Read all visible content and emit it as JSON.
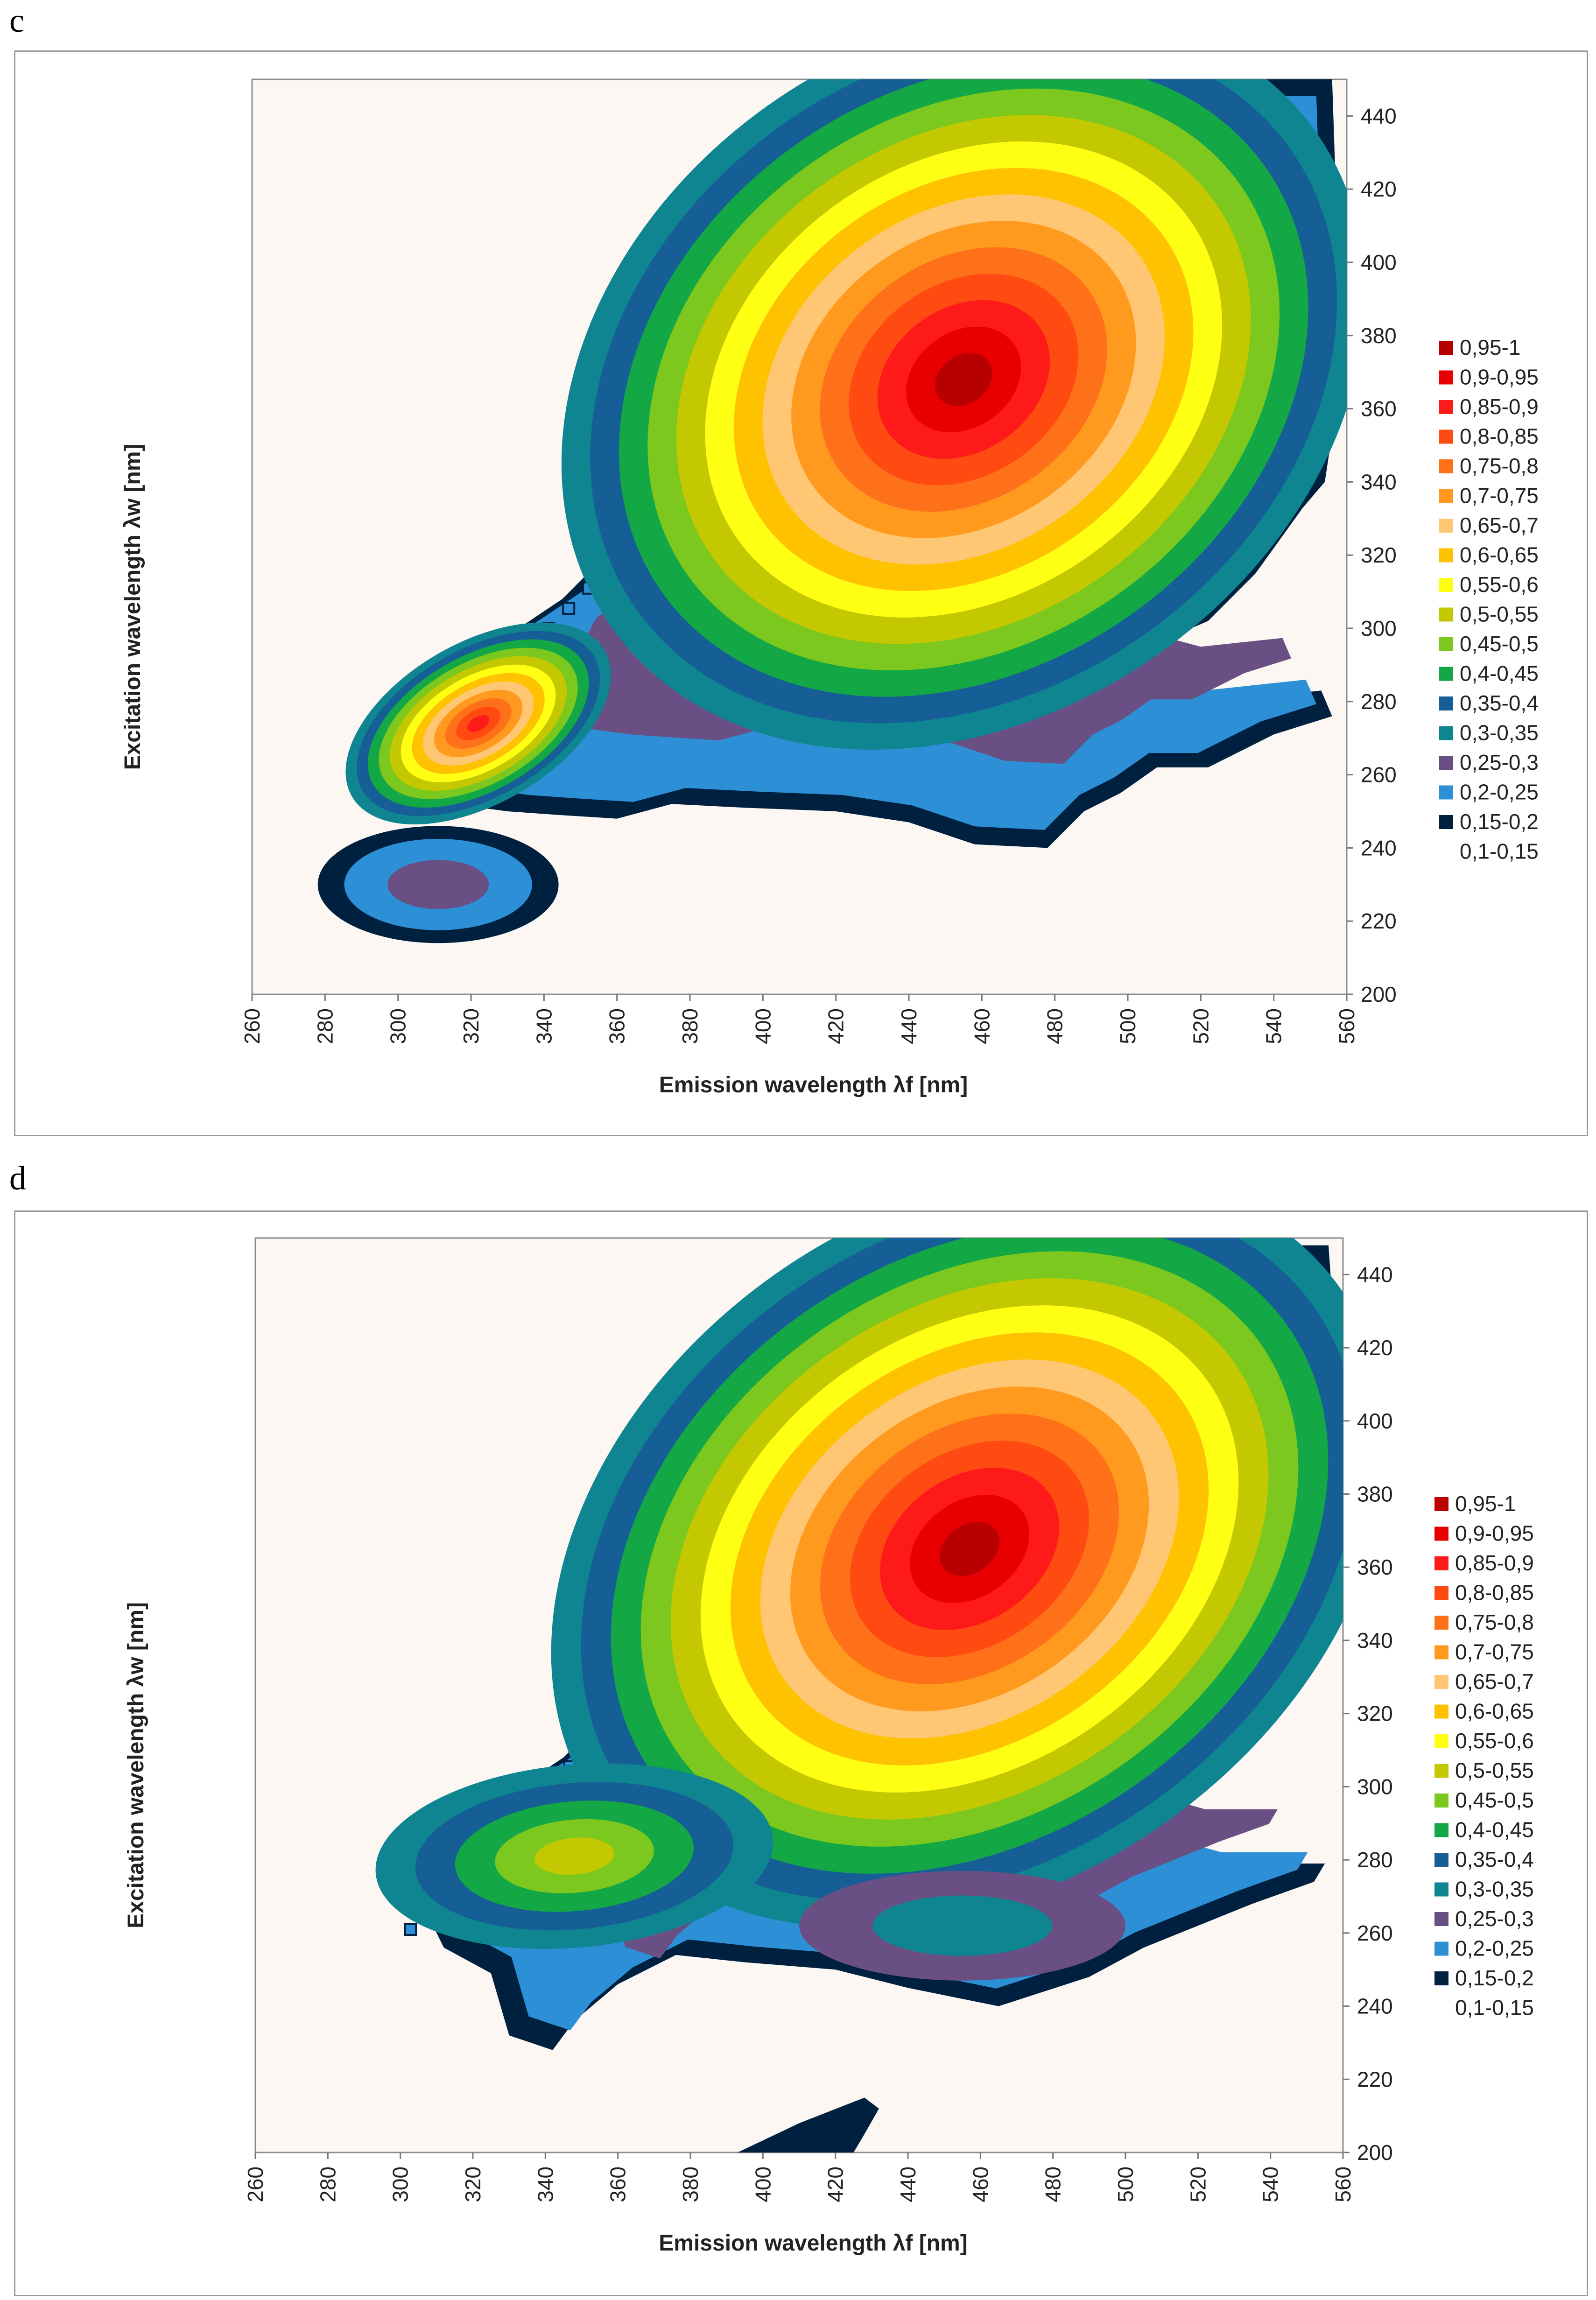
{
  "panels": [
    {
      "label": "c",
      "chart_data": {
        "type": "heatmap",
        "subtype": "contour",
        "xlabel": "Emission wavelength λf [nm]",
        "ylabel": "Excitation wavelength λw [nm]",
        "xlim": [
          260,
          560
        ],
        "ylim": [
          200,
          450
        ],
        "xticks": [
          260,
          280,
          300,
          320,
          340,
          360,
          380,
          400,
          420,
          440,
          460,
          480,
          500,
          520,
          540,
          560
        ],
        "yticks": [
          200,
          220,
          240,
          260,
          280,
          300,
          320,
          340,
          360,
          380,
          400,
          420,
          440
        ],
        "legend_position": "right",
        "peaks": [
          {
            "emission": 455,
            "excitation": 368,
            "max": 0.97
          },
          {
            "emission": 322,
            "excitation": 274,
            "max": 0.87
          },
          {
            "emission": 311,
            "excitation": 230,
            "max": 0.28
          }
        ],
        "legend": [
          {
            "label": "0,95-1",
            "color": "#B90000"
          },
          {
            "label": "0,9-0,95",
            "color": "#E80000"
          },
          {
            "label": "0,85-0,9",
            "color": "#FF1A1A"
          },
          {
            "label": "0,8-0,85",
            "color": "#FF4A12"
          },
          {
            "label": "0,75-0,8",
            "color": "#FF7119"
          },
          {
            "label": "0,7-0,75",
            "color": "#FF9A1E"
          },
          {
            "label": "0,65-0,7",
            "color": "#FFC773"
          },
          {
            "label": "0,6-0,65",
            "color": "#FFC200"
          },
          {
            "label": "0,55-0,6",
            "color": "#FFFF14"
          },
          {
            "label": "0,5-0,55",
            "color": "#C4C800"
          },
          {
            "label": "0,45-0,5",
            "color": "#7DC81E"
          },
          {
            "label": "0,4-0,45",
            "color": "#13A845"
          },
          {
            "label": "0,35-0,4",
            "color": "#155E96"
          },
          {
            "label": "0,3-0,35",
            "color": "#0F8591"
          },
          {
            "label": "0,25-0,3",
            "color": "#6A4F84"
          },
          {
            "label": "0,2-0,25",
            "color": "#2D90D6"
          },
          {
            "label": "0,15-0,2",
            "color": "#00203F"
          },
          {
            "label": "0,1-0,15",
            "color": "#FDF7F3"
          }
        ]
      }
    },
    {
      "label": "d",
      "chart_data": {
        "type": "heatmap",
        "subtype": "contour",
        "xlabel": "Emission wavelength λf [nm]",
        "ylabel": "Excitation wavelength λw [nm]",
        "xlim": [
          260,
          560
        ],
        "ylim": [
          200,
          450
        ],
        "xticks": [
          260,
          280,
          300,
          320,
          340,
          360,
          380,
          400,
          420,
          440,
          460,
          480,
          500,
          520,
          540,
          560
        ],
        "yticks": [
          200,
          220,
          240,
          260,
          280,
          300,
          320,
          340,
          360,
          380,
          400,
          420,
          440
        ],
        "legend_position": "right",
        "peaks": [
          {
            "emission": 457,
            "excitation": 365,
            "max": 0.97
          },
          {
            "emission": 348,
            "excitation": 281,
            "max": 0.52
          },
          {
            "emission": 455,
            "excitation": 262,
            "max": 0.33
          }
        ],
        "legend": [
          {
            "label": "0,95-1",
            "color": "#B90000"
          },
          {
            "label": "0,9-0,95",
            "color": "#E80000"
          },
          {
            "label": "0,85-0,9",
            "color": "#FF1A1A"
          },
          {
            "label": "0,8-0,85",
            "color": "#FF4A12"
          },
          {
            "label": "0,75-0,8",
            "color": "#FF7119"
          },
          {
            "label": "0,7-0,75",
            "color": "#FF9A1E"
          },
          {
            "label": "0,65-0,7",
            "color": "#FFC773"
          },
          {
            "label": "0,6-0,65",
            "color": "#FFC200"
          },
          {
            "label": "0,55-0,6",
            "color": "#FFFF14"
          },
          {
            "label": "0,5-0,55",
            "color": "#C4C800"
          },
          {
            "label": "0,45-0,5",
            "color": "#7DC81E"
          },
          {
            "label": "0,4-0,45",
            "color": "#13A845"
          },
          {
            "label": "0,35-0,4",
            "color": "#155E96"
          },
          {
            "label": "0,3-0,35",
            "color": "#0F8591"
          },
          {
            "label": "0,25-0,3",
            "color": "#6A4F84"
          },
          {
            "label": "0,2-0,25",
            "color": "#2D90D6"
          },
          {
            "label": "0,15-0,2",
            "color": "#00203F"
          },
          {
            "label": "0,1-0,15",
            "color": "#FDF7F3"
          }
        ]
      }
    }
  ]
}
